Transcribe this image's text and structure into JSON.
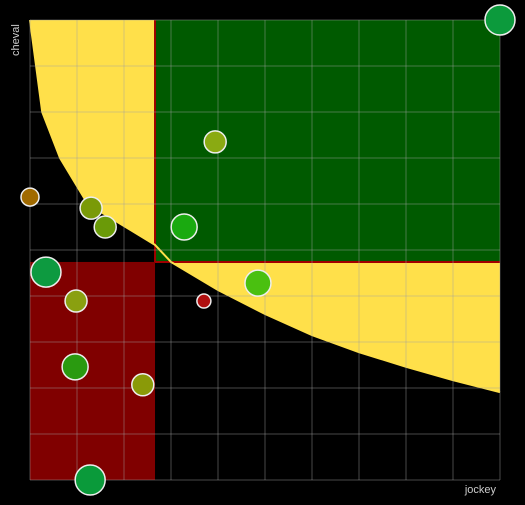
{
  "chart_data": {
    "type": "scatter",
    "x_label": "jockey",
    "y_label": "cheval",
    "xlim": [
      0,
      10
    ],
    "ylim": [
      0,
      10
    ],
    "xticks": [
      0,
      1,
      2,
      3,
      4,
      5,
      6,
      7,
      8,
      9,
      10
    ],
    "yticks": [
      0,
      1,
      2,
      3,
      4,
      5,
      6,
      7,
      8,
      9,
      10
    ],
    "tick_labels": false,
    "grid": true,
    "regions": [
      {
        "color": "#800000",
        "xlim": [
          0,
          2.66
        ],
        "ylim": [
          0,
          4.74
        ]
      },
      {
        "color": "#005a00",
        "xlim": [
          2.66,
          10
        ],
        "ylim": [
          4.74,
          10
        ],
        "border_color": "#a00000"
      }
    ],
    "curve": {
      "color": "#ffe04a",
      "x": [
        0,
        0.26,
        0.64,
        1.23,
        2.66,
        3.0,
        4.0,
        5.0,
        6.0,
        7.0,
        8.0,
        9.0,
        10.0
      ],
      "y": [
        10,
        8,
        7,
        6,
        5.11,
        4.74,
        4.13,
        3.61,
        3.15,
        2.78,
        2.46,
        2.17,
        1.91
      ]
    },
    "x": [
      10,
      3.94,
      0,
      1.3,
      1.6,
      3.28,
      0.34,
      4.85,
      0.98,
      3.7,
      0.96,
      2.4,
      1.28
    ],
    "values": [
      10,
      7.35,
      6.15,
      5.91,
      5.5,
      5.5,
      4.52,
      4.28,
      3.89,
      3.89,
      2.46,
      2.07,
      0
    ],
    "sizes": [
      15,
      11,
      9,
      11,
      11,
      13,
      15,
      13,
      11,
      7,
      13,
      11,
      15
    ],
    "colors": [
      "#0c9a3c",
      "#8aaa12",
      "#a06a00",
      "#7a9a08",
      "#6a9a08",
      "#1aaa10",
      "#0d9a40",
      "#4ac010",
      "#8aa010",
      "#b01010",
      "#2a9a10",
      "#8a9a08",
      "#0a9a3a"
    ]
  }
}
